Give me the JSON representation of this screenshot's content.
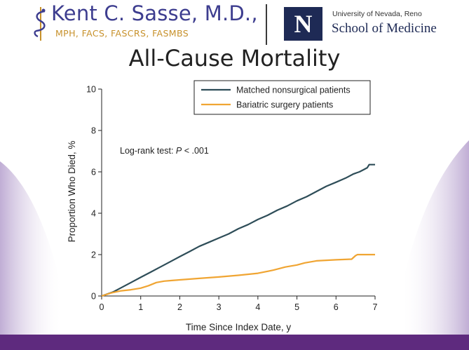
{
  "header": {
    "name": "Kent C. Sasse, M.D.,",
    "credentials": "MPH, FACS, FASCRS, FASMBS",
    "university": "University of Nevada, Reno",
    "school": "School of Medicine",
    "logo_letter": "N"
  },
  "slide_title": "All-Cause Mortality",
  "colors": {
    "nonsurgical": "#2e4d58",
    "surgical": "#f0a533",
    "footer_bar": "#5e2a7e",
    "logo_bg": "#1e2a55"
  },
  "chart_data": {
    "type": "line",
    "xlabel": "Time Since Index Date, y",
    "ylabel": "Proportion Who Died, %",
    "annotation": {
      "prefix": "Log-rank test: ",
      "italic": "P",
      "suffix": " < .001"
    },
    "xlim": [
      0,
      7
    ],
    "ylim": [
      0,
      10
    ],
    "xticks": [
      "0",
      "1",
      "2",
      "3",
      "4",
      "5",
      "6",
      "7"
    ],
    "yticks": [
      "0",
      "2",
      "4",
      "6",
      "8",
      "10"
    ],
    "legend_position": "top-right",
    "series": [
      {
        "name": "Matched nonsurgical patients",
        "color": "#2e4d58",
        "x": [
          0,
          0.3,
          0.5,
          0.75,
          1.0,
          1.25,
          1.5,
          1.75,
          2.0,
          2.25,
          2.5,
          2.75,
          3.0,
          3.25,
          3.5,
          3.75,
          4.0,
          4.25,
          4.5,
          4.75,
          5.0,
          5.25,
          5.5,
          5.75,
          6.0,
          6.25,
          6.45,
          6.6,
          6.7,
          6.8,
          6.85,
          7.0
        ],
        "y": [
          0,
          0.2,
          0.4,
          0.65,
          0.9,
          1.15,
          1.4,
          1.65,
          1.9,
          2.15,
          2.4,
          2.6,
          2.8,
          3.0,
          3.25,
          3.45,
          3.7,
          3.9,
          4.15,
          4.35,
          4.6,
          4.8,
          5.05,
          5.3,
          5.5,
          5.7,
          5.9,
          6.0,
          6.1,
          6.2,
          6.35,
          6.35
        ]
      },
      {
        "name": "Bariatric surgery patients",
        "color": "#f0a533",
        "x": [
          0,
          0.25,
          0.5,
          0.75,
          1.0,
          1.2,
          1.4,
          1.6,
          1.8,
          2.0,
          2.5,
          3.0,
          3.5,
          4.0,
          4.4,
          4.7,
          5.0,
          5.2,
          5.5,
          6.0,
          6.4,
          6.5,
          6.55,
          7.0
        ],
        "y": [
          0,
          0.15,
          0.25,
          0.3,
          0.38,
          0.5,
          0.65,
          0.72,
          0.75,
          0.78,
          0.85,
          0.92,
          1.0,
          1.1,
          1.25,
          1.4,
          1.5,
          1.6,
          1.7,
          1.75,
          1.78,
          1.95,
          2.0,
          2.0
        ]
      }
    ]
  },
  "footer": {
    "text": ""
  }
}
